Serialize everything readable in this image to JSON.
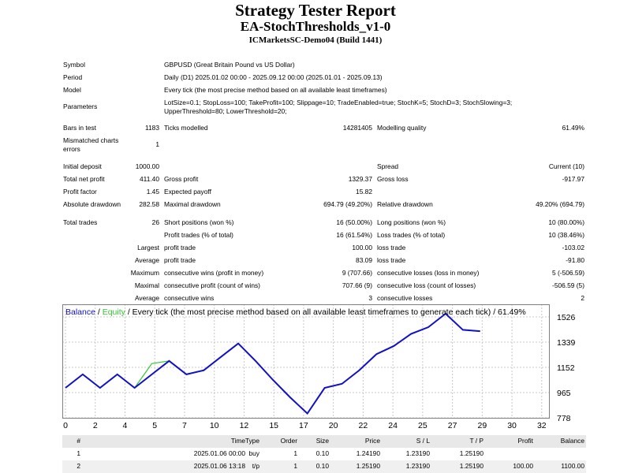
{
  "header": {
    "title": "Strategy Tester Report",
    "ea_name": "EA-StochThresholds_v1-0",
    "server": "ICMarketsSC-Demo04 (Build 1441)"
  },
  "settings": {
    "symbol_label": "Symbol",
    "symbol_value": "GBPUSD (Great Britain Pound vs US Dollar)",
    "period_label": "Period",
    "period_value": "Daily (D1) 2025.01.02 00:00 - 2025.09.12 00:00 (2025.01.01 - 2025.09.13)",
    "model_label": "Model",
    "model_value": "Every tick (the most precise method based on all available least timeframes)",
    "parameters_label": "Parameters",
    "parameters_line1": "LotSize=0.1; StopLoss=100; TakeProfit=100; Slippage=10; TradeEnabled=true; StochK=5; StochD=3; StochSlowing=3;",
    "parameters_line2": "UpperThreshold=80; LowerThreshold=20;"
  },
  "quality": {
    "bars_label": "Bars in test",
    "bars_value": "1183",
    "ticks_label": "Ticks modelled",
    "ticks_value": "14281405",
    "mq_label": "Modelling quality",
    "mq_value": "61.49%",
    "mismatch_label_1": "Mismatched charts",
    "mismatch_label_2": "errors",
    "mismatch_value": "1"
  },
  "results": {
    "initial_deposit_label": "Initial deposit",
    "initial_deposit_value": "1000.00",
    "spread_label": "Spread",
    "spread_value": "Current (10)",
    "net_profit_label": "Total net profit",
    "net_profit_value": "411.40",
    "gross_profit_label": "Gross profit",
    "gross_profit_value": "1329.37",
    "gross_loss_label": "Gross loss",
    "gross_loss_value": "-917.97",
    "profit_factor_label": "Profit factor",
    "profit_factor_value": "1.45",
    "expected_payoff_label": "Expected payoff",
    "expected_payoff_value": "15.82",
    "abs_dd_label": "Absolute drawdown",
    "abs_dd_value": "282.58",
    "max_dd_label": "Maximal drawdown",
    "max_dd_value": "694.79 (49.20%)",
    "rel_dd_label": "Relative drawdown",
    "rel_dd_value": "49.20% (694.79)"
  },
  "trades": {
    "total_label": "Total trades",
    "total_value": "26",
    "short_label": "Short positions (won %)",
    "short_value": "16 (50.00%)",
    "long_label": "Long positions (won %)",
    "long_value": "10 (80.00%)",
    "profit_trades_label": "Profit trades (% of total)",
    "profit_trades_value": "16 (61.54%)",
    "loss_trades_label": "Loss trades (% of total)",
    "loss_trades_value": "10 (38.46%)",
    "largest_label": "Largest",
    "average_label": "Average",
    "maximum_label": "Maximum",
    "maximal_label": "Maximal",
    "profit_trade_label": "profit trade",
    "loss_trade_label": "loss trade",
    "largest_profit_value": "100.00",
    "largest_loss_value": "-103.02",
    "average_profit_value": "83.09",
    "average_loss_value": "-91.80",
    "cons_wins_money_label": "consecutive wins (profit in money)",
    "cons_wins_money_value": "9 (707.66)",
    "cons_losses_money_label": "consecutive losses (loss in money)",
    "cons_losses_money_value": "5 (-506.59)",
    "cons_profit_count_label": "consecutive profit (count of wins)",
    "cons_profit_count_value": "707.66 (9)",
    "cons_loss_count_label": "consecutive loss (count of losses)",
    "cons_loss_count_value": "-506.59 (5)",
    "cons_wins_label": "consecutive wins",
    "cons_wins_value": "3",
    "cons_losses_label": "consecutive losses",
    "cons_losses_value": "2"
  },
  "chart_data": {
    "type": "line",
    "legend_balance": "Balance",
    "legend_sep": " / ",
    "legend_equity": "Equity",
    "legend_desc": " / Every tick (the most precise method based on all available least timeframes to generate each tick) / 61.49%",
    "balance_color": "#1010c8",
    "equity_color": "#32c832",
    "grid": true,
    "xlim": [
      0,
      32
    ],
    "ylim": [
      778,
      1526
    ],
    "x_ticks": [
      "0",
      "2",
      "4",
      "5",
      "7",
      "10",
      "12",
      "15",
      "17",
      "20",
      "22",
      "24",
      "25",
      "27",
      "29",
      "30",
      "32"
    ],
    "y_ticks": [
      "1526",
      "1339",
      "1152",
      "965",
      "778"
    ],
    "series": [
      {
        "name": "Balance",
        "x": [
          0,
          1,
          2,
          3,
          4,
          5,
          6,
          7,
          8,
          9,
          10,
          11,
          12,
          13,
          14,
          15,
          16,
          17,
          18,
          19,
          20,
          21,
          22,
          23,
          24,
          25,
          26
        ],
        "y": [
          1000,
          1100,
          1000,
          1100,
          1000,
          1100,
          1200,
          1100,
          1130,
          1230,
          1329,
          1200,
          1060,
          930,
          810,
          1000,
          1030,
          1130,
          1250,
          1310,
          1400,
          1450,
          1550,
          1430,
          1420,
          null,
          null
        ]
      },
      {
        "name": "Equity",
        "x": [
          4,
          5,
          6
        ],
        "y": [
          1000,
          1180,
          1200
        ]
      }
    ]
  },
  "deals": {
    "headers": [
      "#",
      "Time",
      "Type",
      "Order",
      "Size",
      "Price",
      "S / L",
      "T / P",
      "Profit",
      "Balance"
    ],
    "rows": [
      [
        "1",
        "2025.01.06 00:00",
        "buy",
        "1",
        "0.10",
        "1.24190",
        "1.23190",
        "1.25190",
        "",
        ""
      ],
      [
        "2",
        "2025.01.06 13:18",
        "t/p",
        "1",
        "0.10",
        "1.25190",
        "1.23190",
        "1.25190",
        "100.00",
        "1100.00"
      ]
    ]
  }
}
